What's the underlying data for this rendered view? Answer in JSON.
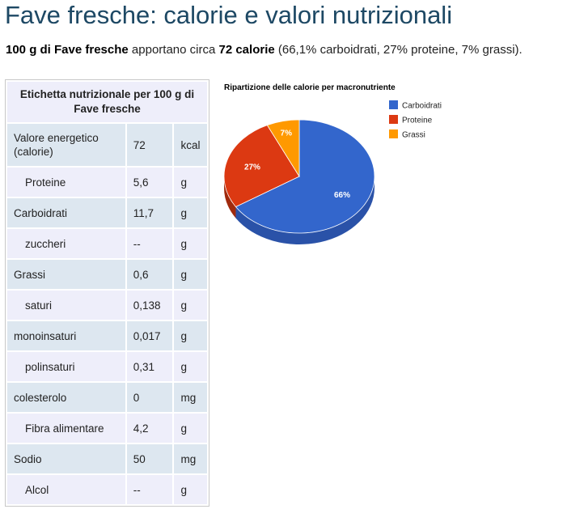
{
  "page": {
    "title": "Fave fresche: calorie e valori nutrizionali",
    "intro": {
      "amount": "100 g di Fave fresche",
      "mid": " apportano circa ",
      "calories": "72 calorie",
      "tail": " (66,1% carboidrati, 27% proteine, 7% grassi)."
    }
  },
  "table": {
    "header": "Etichetta nutrizionale per 100 g di Fave fresche",
    "rows": [
      {
        "name": "Valore energetico (calorie)",
        "value": "72",
        "unit": "kcal"
      },
      {
        "name": "Proteine",
        "value": "5,6",
        "unit": "g"
      },
      {
        "name": "Carboidrati",
        "value": "11,7",
        "unit": "g"
      },
      {
        "name": "zuccheri",
        "value": "--",
        "unit": "g"
      },
      {
        "name": "Grassi",
        "value": "0,6",
        "unit": "g"
      },
      {
        "name": "saturi",
        "value": "0,138",
        "unit": "g"
      },
      {
        "name": "monoinsaturi",
        "value": "0,017",
        "unit": "g"
      },
      {
        "name": "polinsaturi",
        "value": "0,31",
        "unit": "g"
      },
      {
        "name": "colesterolo",
        "value": "0",
        "unit": "mg"
      },
      {
        "name": "Fibra alimentare",
        "value": "4,2",
        "unit": "g"
      },
      {
        "name": "Sodio",
        "value": "50",
        "unit": "mg"
      },
      {
        "name": "Alcol",
        "value": "--",
        "unit": "g"
      }
    ]
  },
  "chart_data": {
    "type": "pie",
    "title": "Ripartizione delle calorie per macronutriente",
    "categories": [
      "Carboidrati",
      "Proteine",
      "Grassi"
    ],
    "values": [
      66,
      27,
      7
    ],
    "labels": [
      "66%",
      "27%",
      "7%"
    ],
    "colors": [
      "#3366cc",
      "#dc3912",
      "#ff9900"
    ],
    "side_colors": [
      "#2a52a8",
      "#a02a0d",
      "#b36b00"
    ],
    "legend": "right",
    "style": "3d"
  }
}
